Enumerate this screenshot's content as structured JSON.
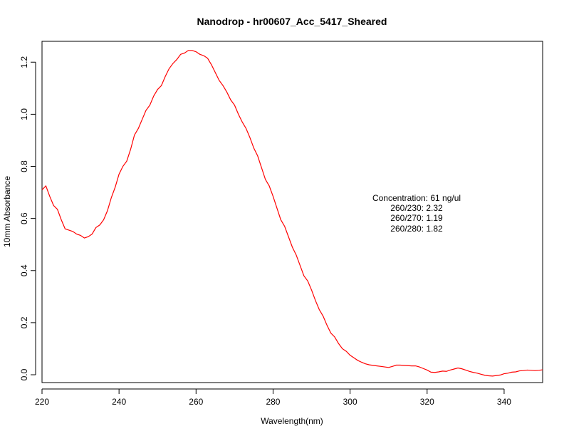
{
  "chart_data": {
    "type": "line",
    "title": "Nanodrop - hr00607_Acc_5417_Sheared",
    "xlabel": "Wavelength(nm)",
    "ylabel": "10mm Absorbance",
    "xlim": [
      220,
      350
    ],
    "ylim": [
      -0.03,
      1.28
    ],
    "xticks": [
      220,
      240,
      260,
      280,
      300,
      320,
      340
    ],
    "yticks": [
      0.0,
      0.2,
      0.4,
      0.6,
      0.8,
      1.0,
      1.2
    ],
    "xtick_labels": [
      "220",
      "240",
      "260",
      "280",
      "300",
      "320",
      "340"
    ],
    "ytick_labels": [
      "0.0",
      "0.2",
      "0.4",
      "0.6",
      "0.8",
      "1.0",
      "1.2"
    ],
    "grid": false,
    "series_color": "#ff0000",
    "annotations": [
      "Concentration: 61 ng/ul",
      "260/230: 2.32",
      "260/270: 1.19",
      "260/280: 1.82"
    ],
    "series": [
      {
        "x": [
          220,
          221,
          222,
          223,
          224,
          225,
          226,
          227,
          228,
          229,
          230,
          231,
          232,
          233,
          234,
          235,
          236,
          237,
          238,
          239,
          240,
          241,
          242,
          243,
          244,
          245,
          246,
          247,
          248,
          249,
          250,
          251,
          252,
          253,
          254,
          255,
          256,
          257,
          258,
          259,
          260,
          261,
          262,
          263,
          264,
          265,
          266,
          267,
          268,
          269,
          270,
          271,
          272,
          273,
          274,
          275,
          276,
          277,
          278,
          279,
          280,
          281,
          282,
          283,
          284,
          285,
          286,
          287,
          288,
          289,
          290,
          291,
          292,
          293,
          294,
          295,
          296,
          297,
          298,
          299,
          300,
          301,
          302,
          303,
          304,
          305,
          306,
          307,
          308,
          309,
          310,
          311,
          312,
          313,
          314,
          315,
          316,
          317,
          318,
          319,
          320,
          321,
          322,
          323,
          324,
          325,
          326,
          327,
          328,
          329,
          330,
          331,
          332,
          333,
          334,
          335,
          336,
          337,
          338,
          339,
          340,
          341,
          342,
          343,
          344,
          345,
          346,
          347,
          348,
          349,
          350
        ],
        "values": [
          0.71,
          0.725,
          0.685,
          0.65,
          0.635,
          0.595,
          0.56,
          0.555,
          0.55,
          0.54,
          0.535,
          0.525,
          0.53,
          0.54,
          0.565,
          0.575,
          0.595,
          0.63,
          0.68,
          0.72,
          0.77,
          0.8,
          0.82,
          0.865,
          0.92,
          0.945,
          0.98,
          1.015,
          1.035,
          1.07,
          1.095,
          1.11,
          1.145,
          1.175,
          1.195,
          1.21,
          1.23,
          1.235,
          1.245,
          1.245,
          1.24,
          1.23,
          1.225,
          1.215,
          1.19,
          1.16,
          1.13,
          1.11,
          1.085,
          1.055,
          1.035,
          1.0,
          0.97,
          0.945,
          0.91,
          0.87,
          0.84,
          0.795,
          0.75,
          0.725,
          0.685,
          0.64,
          0.595,
          0.57,
          0.53,
          0.49,
          0.46,
          0.42,
          0.38,
          0.36,
          0.325,
          0.285,
          0.25,
          0.225,
          0.19,
          0.16,
          0.145,
          0.12,
          0.1,
          0.09,
          0.075,
          0.065,
          0.055,
          0.048,
          0.042,
          0.038,
          0.036,
          0.034,
          0.032,
          0.03,
          0.028,
          0.032,
          0.037,
          0.037,
          0.036,
          0.035,
          0.034,
          0.034,
          0.03,
          0.024,
          0.018,
          0.01,
          0.009,
          0.011,
          0.014,
          0.013,
          0.018,
          0.022,
          0.026,
          0.023,
          0.018,
          0.013,
          0.009,
          0.006,
          0.002,
          -0.002,
          -0.004,
          -0.005,
          -0.003,
          -0.001,
          0.004,
          0.006,
          0.01,
          0.011,
          0.015,
          0.016,
          0.018,
          0.017,
          0.016,
          0.017,
          0.019
        ]
      }
    ]
  }
}
